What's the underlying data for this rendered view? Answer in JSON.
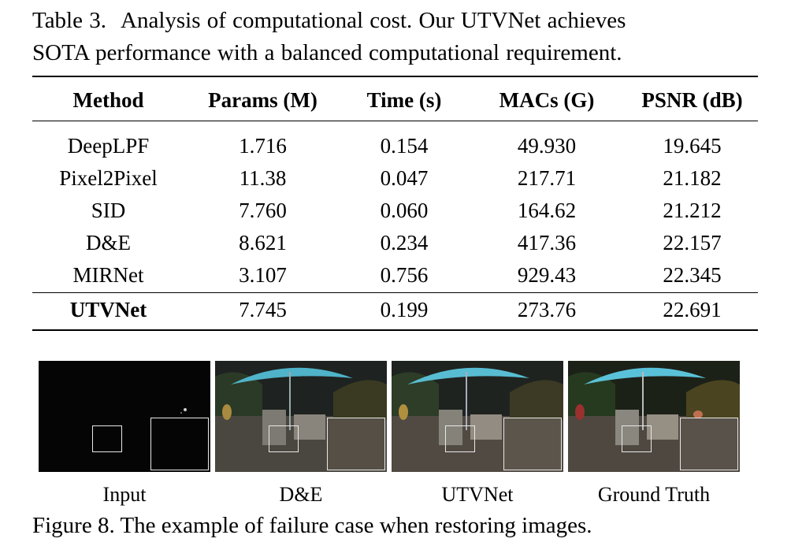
{
  "table_caption": {
    "label": "Table 3.",
    "line1": "Analysis of computational cost. Our UTVNet achieves",
    "line2": "SOTA performance with a balanced computational requirement."
  },
  "table": {
    "headers": [
      "Method",
      "Params (M)",
      "Time (s)",
      "MACs (G)",
      "PSNR (dB)"
    ],
    "rows": [
      [
        "DeepLPF",
        "1.716",
        "0.154",
        "49.930",
        "19.645"
      ],
      [
        "Pixel2Pixel",
        "11.38",
        "0.047",
        "217.71",
        "21.182"
      ],
      [
        "SID",
        "7.760",
        "0.060",
        "164.62",
        "21.212"
      ],
      [
        "D&E",
        "8.621",
        "0.234",
        "417.36",
        "22.157"
      ],
      [
        "MIRNet",
        "3.107",
        "0.756",
        "929.43",
        "22.345"
      ],
      [
        "UTVNet",
        "7.745",
        "0.199",
        "273.76",
        "22.691"
      ]
    ]
  },
  "figure": {
    "panels": [
      "Input",
      "D&E",
      "UTVNet",
      "Ground Truth"
    ],
    "caption": "Figure 8. The example of failure case when restoring images."
  },
  "colors": {
    "umbrella": "#4fb3c9",
    "input_bg": "#050505",
    "night_bg": "#2c2a26"
  }
}
